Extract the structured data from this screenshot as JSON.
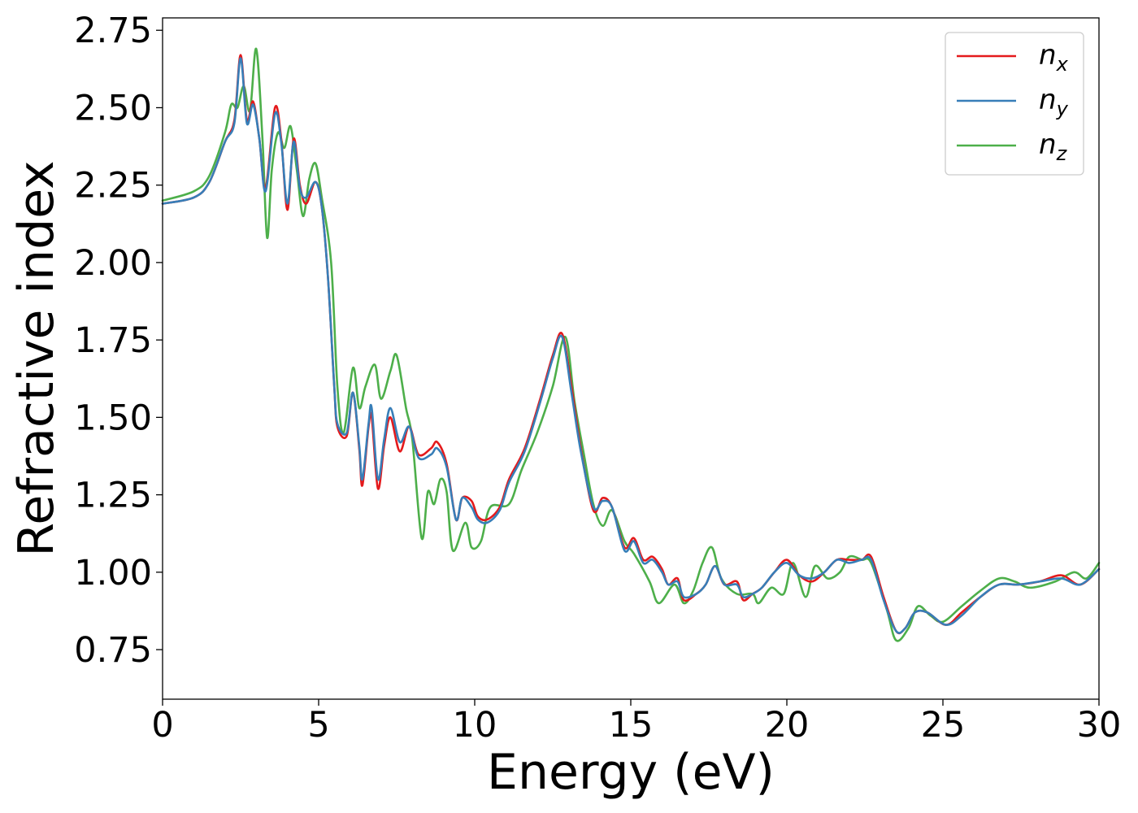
{
  "chart_data": {
    "type": "line",
    "xlabel": "Energy (eV)",
    "ylabel": "Refractive index",
    "xlim": [
      0,
      30
    ],
    "ylim": [
      0.59,
      2.79
    ],
    "x_ticks": [
      0,
      5,
      10,
      15,
      20,
      25,
      30
    ],
    "x_tick_labels": [
      "0",
      "5",
      "10",
      "15",
      "20",
      "25",
      "30"
    ],
    "y_ticks": [
      0.75,
      1.0,
      1.25,
      1.5,
      1.75,
      2.0,
      2.25,
      2.5,
      2.75
    ],
    "y_tick_labels": [
      "0.75",
      "1.00",
      "1.25",
      "1.50",
      "1.75",
      "2.00",
      "2.25",
      "2.50",
      "2.75"
    ],
    "grid": false,
    "legend_position": "top-right",
    "series": [
      {
        "name": "n_x",
        "label_base": "n",
        "label_sub": "x",
        "color": "#e41a1c",
        "points": [
          [
            0,
            2.19
          ],
          [
            1,
            2.21
          ],
          [
            1.5,
            2.26
          ],
          [
            2,
            2.39
          ],
          [
            2.3,
            2.46
          ],
          [
            2.5,
            2.67
          ],
          [
            2.7,
            2.46
          ],
          [
            2.9,
            2.52
          ],
          [
            3.1,
            2.4
          ],
          [
            3.3,
            2.24
          ],
          [
            3.6,
            2.5
          ],
          [
            3.8,
            2.4
          ],
          [
            4.0,
            2.17
          ],
          [
            4.2,
            2.4
          ],
          [
            4.4,
            2.25
          ],
          [
            4.6,
            2.19
          ],
          [
            4.9,
            2.26
          ],
          [
            5.1,
            2.18
          ],
          [
            5.3,
            1.95
          ],
          [
            5.5,
            1.6
          ],
          [
            5.6,
            1.47
          ],
          [
            5.9,
            1.44
          ],
          [
            6.1,
            1.58
          ],
          [
            6.3,
            1.4
          ],
          [
            6.4,
            1.28
          ],
          [
            6.6,
            1.47
          ],
          [
            6.7,
            1.5
          ],
          [
            6.9,
            1.27
          ],
          [
            7.1,
            1.41
          ],
          [
            7.3,
            1.5
          ],
          [
            7.6,
            1.39
          ],
          [
            7.9,
            1.47
          ],
          [
            8.2,
            1.38
          ],
          [
            8.6,
            1.4
          ],
          [
            8.8,
            1.42
          ],
          [
            9.1,
            1.35
          ],
          [
            9.4,
            1.17
          ],
          [
            9.6,
            1.24
          ],
          [
            9.9,
            1.23
          ],
          [
            10.1,
            1.18
          ],
          [
            10.4,
            1.17
          ],
          [
            10.8,
            1.21
          ],
          [
            11.1,
            1.3
          ],
          [
            11.6,
            1.4
          ],
          [
            12.1,
            1.56
          ],
          [
            12.5,
            1.7
          ],
          [
            12.8,
            1.77
          ],
          [
            13.1,
            1.6
          ],
          [
            13.4,
            1.4
          ],
          [
            13.8,
            1.2
          ],
          [
            14.1,
            1.24
          ],
          [
            14.4,
            1.21
          ],
          [
            14.8,
            1.08
          ],
          [
            15.1,
            1.11
          ],
          [
            15.4,
            1.04
          ],
          [
            15.7,
            1.05
          ],
          [
            16.0,
            1.01
          ],
          [
            16.2,
            0.96
          ],
          [
            16.5,
            0.98
          ],
          [
            16.7,
            0.91
          ],
          [
            17.1,
            0.93
          ],
          [
            17.4,
            0.96
          ],
          [
            17.7,
            1.02
          ],
          [
            18.0,
            0.96
          ],
          [
            18.4,
            0.97
          ],
          [
            18.6,
            0.91
          ],
          [
            18.9,
            0.93
          ],
          [
            19.2,
            0.95
          ],
          [
            19.6,
            1.0
          ],
          [
            20.0,
            1.04
          ],
          [
            20.4,
            0.99
          ],
          [
            20.8,
            0.97
          ],
          [
            21.2,
            1.0
          ],
          [
            21.6,
            1.04
          ],
          [
            22.0,
            1.04
          ],
          [
            22.4,
            1.04
          ],
          [
            22.7,
            1.05
          ],
          [
            23.1,
            0.92
          ],
          [
            23.5,
            0.81
          ],
          [
            23.8,
            0.82
          ],
          [
            24.1,
            0.87
          ],
          [
            24.5,
            0.87
          ],
          [
            25.1,
            0.83
          ],
          [
            25.6,
            0.87
          ],
          [
            26.2,
            0.92
          ],
          [
            26.8,
            0.96
          ],
          [
            27.4,
            0.96
          ],
          [
            28.1,
            0.97
          ],
          [
            28.8,
            0.99
          ],
          [
            29.4,
            0.96
          ],
          [
            30.0,
            1.01
          ]
        ]
      },
      {
        "name": "n_y",
        "label_base": "n",
        "label_sub": "y",
        "color": "#377eb8",
        "points": [
          [
            0,
            2.19
          ],
          [
            1,
            2.21
          ],
          [
            1.5,
            2.26
          ],
          [
            2,
            2.39
          ],
          [
            2.3,
            2.45
          ],
          [
            2.5,
            2.66
          ],
          [
            2.7,
            2.45
          ],
          [
            2.9,
            2.51
          ],
          [
            3.1,
            2.4
          ],
          [
            3.3,
            2.23
          ],
          [
            3.6,
            2.48
          ],
          [
            3.8,
            2.39
          ],
          [
            4.0,
            2.19
          ],
          [
            4.2,
            2.39
          ],
          [
            4.4,
            2.24
          ],
          [
            4.6,
            2.21
          ],
          [
            4.9,
            2.26
          ],
          [
            5.1,
            2.18
          ],
          [
            5.3,
            1.95
          ],
          [
            5.5,
            1.6
          ],
          [
            5.6,
            1.48
          ],
          [
            5.9,
            1.45
          ],
          [
            6.1,
            1.58
          ],
          [
            6.3,
            1.41
          ],
          [
            6.4,
            1.3
          ],
          [
            6.6,
            1.48
          ],
          [
            6.7,
            1.53
          ],
          [
            6.9,
            1.3
          ],
          [
            7.1,
            1.43
          ],
          [
            7.3,
            1.53
          ],
          [
            7.6,
            1.42
          ],
          [
            7.9,
            1.47
          ],
          [
            8.2,
            1.37
          ],
          [
            8.6,
            1.38
          ],
          [
            8.8,
            1.4
          ],
          [
            9.1,
            1.34
          ],
          [
            9.4,
            1.17
          ],
          [
            9.6,
            1.24
          ],
          [
            9.9,
            1.21
          ],
          [
            10.1,
            1.17
          ],
          [
            10.4,
            1.16
          ],
          [
            10.8,
            1.2
          ],
          [
            11.1,
            1.29
          ],
          [
            11.6,
            1.39
          ],
          [
            12.1,
            1.55
          ],
          [
            12.5,
            1.69
          ],
          [
            12.8,
            1.76
          ],
          [
            13.1,
            1.58
          ],
          [
            13.4,
            1.39
          ],
          [
            13.8,
            1.21
          ],
          [
            14.1,
            1.23
          ],
          [
            14.4,
            1.21
          ],
          [
            14.8,
            1.07
          ],
          [
            15.1,
            1.1
          ],
          [
            15.4,
            1.03
          ],
          [
            15.7,
            1.04
          ],
          [
            16.0,
            1.0
          ],
          [
            16.2,
            0.96
          ],
          [
            16.5,
            0.97
          ],
          [
            16.7,
            0.92
          ],
          [
            17.1,
            0.93
          ],
          [
            17.4,
            0.96
          ],
          [
            17.7,
            1.02
          ],
          [
            18.0,
            0.96
          ],
          [
            18.4,
            0.96
          ],
          [
            18.6,
            0.92
          ],
          [
            18.9,
            0.93
          ],
          [
            19.2,
            0.95
          ],
          [
            19.6,
            1.0
          ],
          [
            20.0,
            1.03
          ],
          [
            20.4,
            0.99
          ],
          [
            20.8,
            0.98
          ],
          [
            21.2,
            1.0
          ],
          [
            21.6,
            1.04
          ],
          [
            22.0,
            1.03
          ],
          [
            22.4,
            1.04
          ],
          [
            22.7,
            1.04
          ],
          [
            23.1,
            0.91
          ],
          [
            23.5,
            0.81
          ],
          [
            23.8,
            0.82
          ],
          [
            24.1,
            0.87
          ],
          [
            24.5,
            0.87
          ],
          [
            25.1,
            0.83
          ],
          [
            25.6,
            0.86
          ],
          [
            26.2,
            0.92
          ],
          [
            26.8,
            0.96
          ],
          [
            27.4,
            0.96
          ],
          [
            28.1,
            0.97
          ],
          [
            28.8,
            0.98
          ],
          [
            29.4,
            0.96
          ],
          [
            30.0,
            1.01
          ]
        ]
      },
      {
        "name": "n_z",
        "label_base": "n",
        "label_sub": "z",
        "color": "#4daf4a",
        "points": [
          [
            0,
            2.2
          ],
          [
            1,
            2.23
          ],
          [
            1.5,
            2.28
          ],
          [
            2,
            2.42
          ],
          [
            2.2,
            2.51
          ],
          [
            2.4,
            2.5
          ],
          [
            2.6,
            2.57
          ],
          [
            2.8,
            2.49
          ],
          [
            3.0,
            2.69
          ],
          [
            3.2,
            2.4
          ],
          [
            3.35,
            2.08
          ],
          [
            3.5,
            2.3
          ],
          [
            3.7,
            2.42
          ],
          [
            3.9,
            2.37
          ],
          [
            4.1,
            2.44
          ],
          [
            4.3,
            2.3
          ],
          [
            4.5,
            2.15
          ],
          [
            4.7,
            2.27
          ],
          [
            4.9,
            2.32
          ],
          [
            5.1,
            2.21
          ],
          [
            5.4,
            2.0
          ],
          [
            5.6,
            1.6
          ],
          [
            5.8,
            1.45
          ],
          [
            6.1,
            1.66
          ],
          [
            6.3,
            1.53
          ],
          [
            6.5,
            1.6
          ],
          [
            6.8,
            1.67
          ],
          [
            7.0,
            1.56
          ],
          [
            7.3,
            1.65
          ],
          [
            7.5,
            1.7
          ],
          [
            7.8,
            1.53
          ],
          [
            8.0,
            1.43
          ],
          [
            8.3,
            1.11
          ],
          [
            8.5,
            1.26
          ],
          [
            8.7,
            1.22
          ],
          [
            8.9,
            1.3
          ],
          [
            9.1,
            1.26
          ],
          [
            9.3,
            1.07
          ],
          [
            9.7,
            1.16
          ],
          [
            9.9,
            1.08
          ],
          [
            10.2,
            1.1
          ],
          [
            10.5,
            1.21
          ],
          [
            11.1,
            1.22
          ],
          [
            11.5,
            1.33
          ],
          [
            12.0,
            1.45
          ],
          [
            12.5,
            1.6
          ],
          [
            12.9,
            1.76
          ],
          [
            13.2,
            1.55
          ],
          [
            13.5,
            1.38
          ],
          [
            13.8,
            1.22
          ],
          [
            14.1,
            1.15
          ],
          [
            14.4,
            1.2
          ],
          [
            14.8,
            1.1
          ],
          [
            15.1,
            1.06
          ],
          [
            15.6,
            0.97
          ],
          [
            15.9,
            0.9
          ],
          [
            16.4,
            0.96
          ],
          [
            16.7,
            0.9
          ],
          [
            17.0,
            0.94
          ],
          [
            17.3,
            1.03
          ],
          [
            17.6,
            1.08
          ],
          [
            17.9,
            0.98
          ],
          [
            18.4,
            0.93
          ],
          [
            18.9,
            0.93
          ],
          [
            19.1,
            0.9
          ],
          [
            19.5,
            0.95
          ],
          [
            19.9,
            0.93
          ],
          [
            20.2,
            1.03
          ],
          [
            20.6,
            0.92
          ],
          [
            20.9,
            1.02
          ],
          [
            21.3,
            0.98
          ],
          [
            21.7,
            1.0
          ],
          [
            22.0,
            1.05
          ],
          [
            22.4,
            1.04
          ],
          [
            22.7,
            1.03
          ],
          [
            23.2,
            0.88
          ],
          [
            23.5,
            0.78
          ],
          [
            23.9,
            0.82
          ],
          [
            24.2,
            0.89
          ],
          [
            24.6,
            0.86
          ],
          [
            25.0,
            0.84
          ],
          [
            25.6,
            0.89
          ],
          [
            26.2,
            0.94
          ],
          [
            26.8,
            0.98
          ],
          [
            27.3,
            0.97
          ],
          [
            27.8,
            0.95
          ],
          [
            28.6,
            0.97
          ],
          [
            29.2,
            1.0
          ],
          [
            29.6,
            0.98
          ],
          [
            30.0,
            1.03
          ]
        ]
      }
    ]
  }
}
